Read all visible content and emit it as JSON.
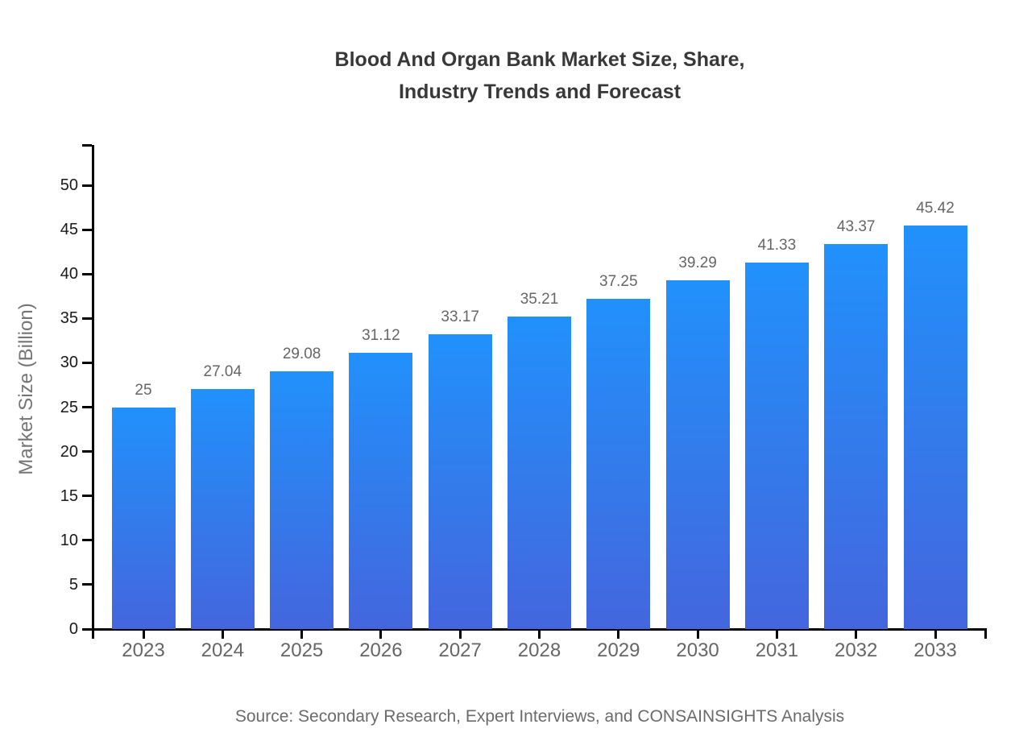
{
  "title": {
    "line1": "Blood And Organ Bank Market Size, Share,",
    "line2": "Industry Trends and Forecast"
  },
  "source": "Source: Secondary Research, Expert Interviews, and CONSAINSIGHTS Analysis",
  "chart_data": {
    "type": "bar",
    "title": "Blood And Organ Bank Market Size, Share, Industry Trends and Forecast",
    "categories": [
      "2023",
      "2024",
      "2025",
      "2026",
      "2027",
      "2028",
      "2029",
      "2030",
      "2031",
      "2032",
      "2033"
    ],
    "values": [
      25,
      27.04,
      29.08,
      31.12,
      33.17,
      35.21,
      37.25,
      39.29,
      41.33,
      43.37,
      45.42
    ],
    "value_labels": [
      "25",
      "27.04",
      "29.08",
      "31.12",
      "33.17",
      "35.21",
      "37.25",
      "39.29",
      "41.33",
      "43.37",
      "45.42"
    ],
    "xlabel": "",
    "ylabel": "Market Size (Billion)",
    "ylim": [
      0,
      50
    ],
    "yticks": [
      0,
      5,
      10,
      15,
      20,
      25,
      30,
      35,
      40,
      45,
      50
    ],
    "grid": false,
    "legend": "none",
    "bar_gradient_top": "#2191fb",
    "bar_gradient_bottom": "#4466dd",
    "axis_color": "#000000",
    "tick_label_color": "#1a1a1a",
    "category_label_color": "#666666",
    "value_label_color": "#666666",
    "title_color": "#383838",
    "source_color": "#6b6b6b"
  }
}
